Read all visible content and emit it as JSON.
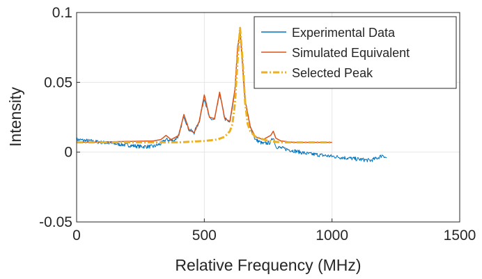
{
  "chart_data": {
    "type": "line",
    "xlabel": "Relative Frequency (MHz)",
    "ylabel": "Intensity",
    "xlim": [
      0,
      1500
    ],
    "ylim": [
      -0.05,
      0.1
    ],
    "xticks": [
      0,
      500,
      1000,
      1500
    ],
    "yticks": [
      -0.05,
      0,
      0.05,
      0.1
    ],
    "xtick_labels": [
      "0",
      "500",
      "1000",
      "1500"
    ],
    "ytick_labels": [
      "-0.05",
      "0",
      "0.05",
      "0.1"
    ],
    "grid": true,
    "legend_position": "top-right",
    "series": [
      {
        "name": "Experimental Data",
        "color": "#0072BD",
        "style": "noisy-line",
        "x": [
          0,
          50,
          100,
          150,
          200,
          250,
          300,
          330,
          350,
          380,
          400,
          420,
          440,
          460,
          480,
          500,
          520,
          540,
          560,
          580,
          600,
          620,
          630,
          640,
          650,
          660,
          680,
          700,
          730,
          760,
          770,
          780,
          800,
          850,
          900,
          950,
          1000,
          1050,
          1100,
          1150,
          1180,
          1200,
          1210,
          1215
        ],
        "y": [
          0.009,
          0.008,
          0.007,
          0.006,
          0.005,
          0.004,
          0.004,
          0.006,
          0.009,
          0.008,
          0.012,
          0.026,
          0.016,
          0.014,
          0.022,
          0.039,
          0.024,
          0.023,
          0.042,
          0.024,
          0.021,
          0.044,
          0.075,
          0.086,
          0.06,
          0.036,
          0.018,
          0.009,
          0.006,
          0.007,
          0.011,
          0.004,
          0.003,
          0.001,
          -0.001,
          -0.002,
          -0.003,
          -0.004,
          -0.005,
          -0.006,
          -0.004,
          -0.002,
          -0.004,
          -0.004
        ]
      },
      {
        "name": "Simulated Equivalent",
        "color": "#D95319",
        "style": "line",
        "x": [
          0,
          300,
          330,
          350,
          370,
          400,
          420,
          440,
          460,
          480,
          500,
          520,
          540,
          560,
          580,
          600,
          620,
          630,
          640,
          650,
          660,
          680,
          700,
          730,
          760,
          770,
          780,
          800,
          850,
          1000
        ],
        "y": [
          0.007,
          0.008,
          0.009,
          0.012,
          0.009,
          0.012,
          0.027,
          0.016,
          0.014,
          0.022,
          0.041,
          0.025,
          0.024,
          0.043,
          0.024,
          0.022,
          0.045,
          0.074,
          0.088,
          0.062,
          0.037,
          0.018,
          0.011,
          0.009,
          0.012,
          0.015,
          0.01,
          0.008,
          0.007,
          0.007
        ]
      },
      {
        "name": "Selected Peak",
        "color": "#EDB120",
        "style": "dash-dot",
        "x": [
          0,
          200,
          400,
          500,
          550,
          580,
          600,
          610,
          620,
          630,
          640,
          650,
          660,
          670,
          680,
          700,
          750,
          800,
          900,
          1000
        ],
        "y": [
          0.007,
          0.007,
          0.007,
          0.008,
          0.009,
          0.011,
          0.015,
          0.02,
          0.035,
          0.065,
          0.089,
          0.065,
          0.035,
          0.02,
          0.015,
          0.011,
          0.008,
          0.007,
          0.007,
          0.007
        ]
      }
    ]
  }
}
